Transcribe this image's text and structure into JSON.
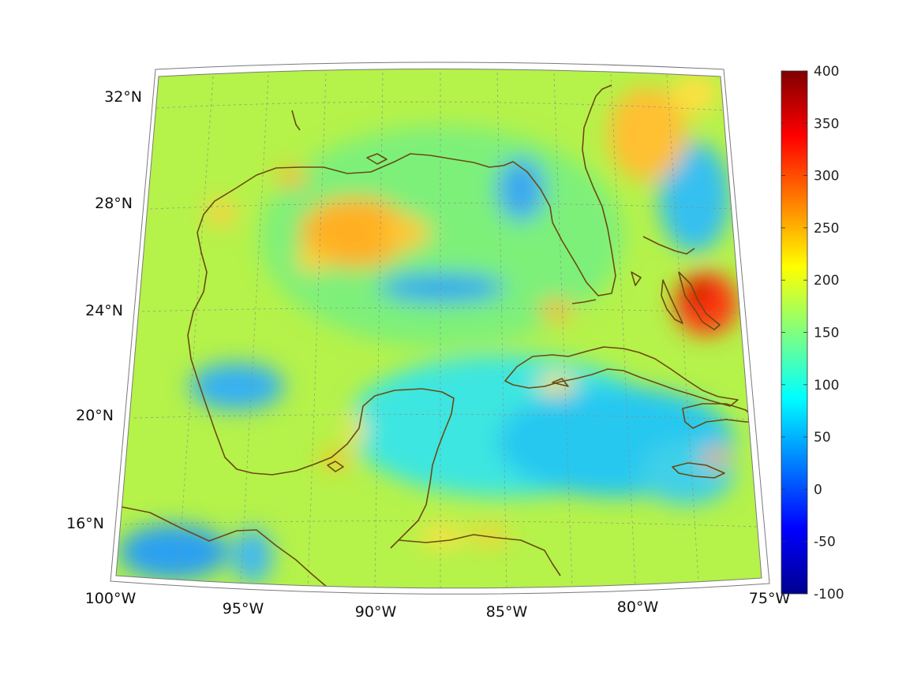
{
  "map": {
    "longitude_labels": [
      "100°W",
      "95°W",
      "90°W",
      "85°W",
      "80°W",
      "75°W"
    ],
    "latitude_labels": [
      "32°N",
      "28°N",
      "24°N",
      "20°N",
      "16°N"
    ],
    "coastline_color": "#6b4a12",
    "gridline_color": "#8a8a8a",
    "frame_color": "#7a7a7a"
  },
  "colorbar": {
    "colormap": "jet",
    "range": [
      -100,
      400
    ],
    "tick_labels": [
      "400",
      "350",
      "300",
      "250",
      "200",
      "150",
      "100",
      "50",
      "0",
      "-50",
      "-100"
    ]
  }
}
